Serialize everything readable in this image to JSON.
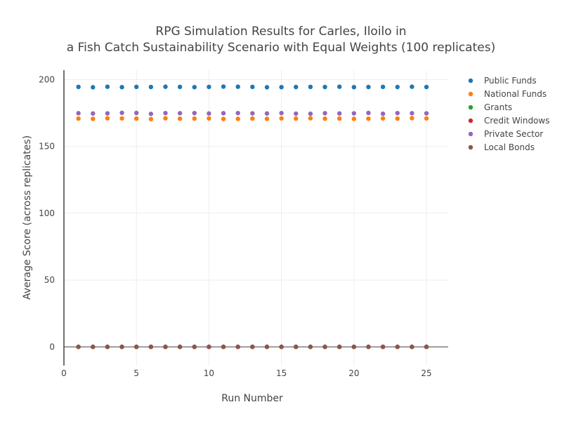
{
  "chart_data": {
    "type": "scatter",
    "title_lines": [
      "RPG Simulation Results for Carles, Iloilo in",
      "a Fish Catch Sustainability Scenario with Equal Weights (100 replicates)"
    ],
    "xlabel": "Run Number",
    "ylabel": "Average Score (across replicates)",
    "xlim": [
      0,
      26.5
    ],
    "ylim": [
      -14,
      207
    ],
    "x_ticks": [
      0,
      5,
      10,
      15,
      20,
      25
    ],
    "y_ticks": [
      0,
      50,
      100,
      150,
      200
    ],
    "grid": true,
    "legend_position": "top-right",
    "x": [
      1,
      2,
      3,
      4,
      5,
      6,
      7,
      8,
      9,
      10,
      11,
      12,
      13,
      14,
      15,
      16,
      17,
      18,
      19,
      20,
      21,
      22,
      23,
      24,
      25
    ],
    "series": [
      {
        "name": "Public Funds",
        "color": "#1f77b4",
        "values": [
          194.5,
          194.2,
          194.6,
          194.3,
          194.5,
          194.4,
          194.6,
          194.5,
          194.3,
          194.5,
          194.7,
          194.6,
          194.5,
          194.2,
          194.3,
          194.4,
          194.5,
          194.4,
          194.6,
          194.3,
          194.4,
          194.5,
          194.4,
          194.6,
          194.4
        ]
      },
      {
        "name": "National Funds",
        "color": "#ff7f0e",
        "values": [
          170.8,
          170.6,
          171.0,
          170.9,
          170.8,
          170.4,
          171.0,
          170.7,
          170.8,
          170.9,
          170.5,
          170.6,
          170.8,
          170.6,
          170.9,
          170.8,
          171.0,
          170.7,
          170.8,
          170.6,
          170.7,
          170.9,
          170.8,
          171.1,
          170.9
        ]
      },
      {
        "name": "Grants",
        "color": "#2ca02c",
        "values": [
          0,
          0,
          0,
          0,
          0,
          0,
          0,
          0,
          0,
          0,
          0,
          0,
          0,
          0,
          0,
          0,
          0,
          0,
          0,
          0,
          0,
          0,
          0,
          0,
          0
        ]
      },
      {
        "name": "Credit Windows",
        "color": "#d62728",
        "values": [
          0,
          0,
          0,
          0,
          0,
          0,
          0,
          0,
          0,
          0,
          0,
          0,
          0,
          0,
          0,
          0,
          0,
          0,
          0,
          0,
          0,
          0,
          0,
          0,
          0
        ]
      },
      {
        "name": "Private Sector",
        "color": "#9467bd",
        "values": [
          174.8,
          174.6,
          174.7,
          175.1,
          175.0,
          174.3,
          174.9,
          174.8,
          174.9,
          174.6,
          174.8,
          174.9,
          174.7,
          174.6,
          174.9,
          174.5,
          174.4,
          174.8,
          174.6,
          174.7,
          175.0,
          174.4,
          174.9,
          174.8,
          174.7
        ]
      },
      {
        "name": "Local Bonds",
        "color": "#8c564b",
        "values": [
          0,
          0,
          0,
          0,
          0,
          0,
          0,
          0,
          0,
          0,
          0,
          0,
          0,
          0,
          0,
          0,
          0,
          0,
          0,
          0,
          0,
          0,
          0,
          0,
          0
        ]
      }
    ]
  }
}
